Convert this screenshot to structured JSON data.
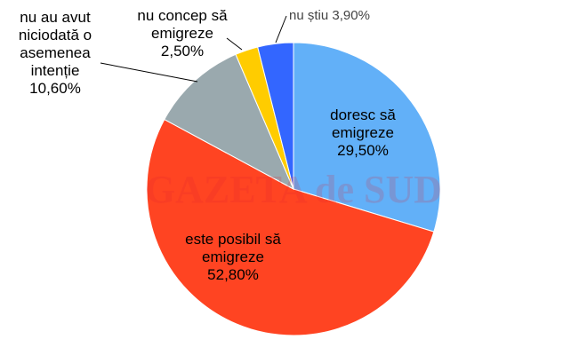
{
  "chart_data": {
    "type": "pie",
    "categories": [
      "doresc să emigreze",
      "este posibil să emigreze",
      "nu au avut niciodată o asemenea intenție",
      "nu concep să emigreze",
      "nu știu"
    ],
    "values": [
      29.5,
      52.8,
      10.6,
      2.5,
      3.9
    ],
    "value_labels": [
      "29,50%",
      "52,80%",
      "10,60%",
      "2,50%",
      "3,90%"
    ],
    "colors": [
      "#62b0f8",
      "#ff4422",
      "#9aa9ae",
      "#ffcc00",
      "#3366ff"
    ],
    "watermark": "GAZETA de SUD"
  }
}
